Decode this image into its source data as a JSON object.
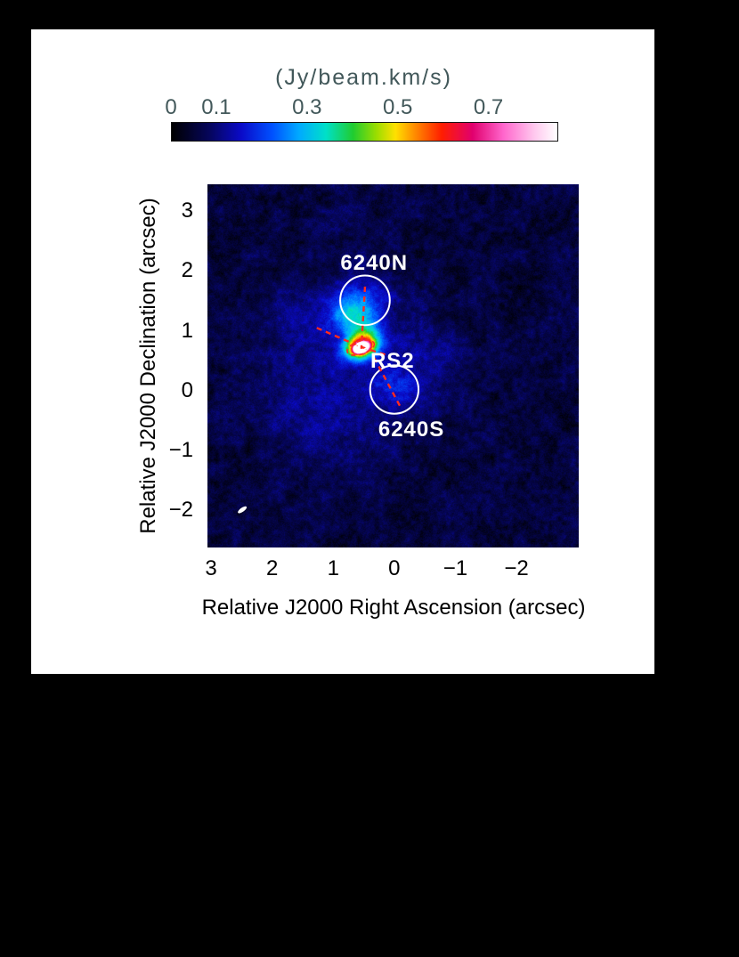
{
  "figure": {
    "background": "#000000",
    "panel_background": "#ffffff"
  },
  "colorbar": {
    "label": "(Jy/beam.km/s)",
    "text_color": "#42585a",
    "ticks": [
      {
        "value": 0,
        "label": "0"
      },
      {
        "value": 0.1,
        "label": "0.1"
      },
      {
        "value": 0.3,
        "label": "0.3"
      },
      {
        "value": 0.5,
        "label": "0.5"
      },
      {
        "value": 0.7,
        "label": "0.7"
      }
    ]
  },
  "axes": {
    "x_label": "Relative J2000 Right Ascension (arcsec)",
    "y_label": "Relative J2000 Declination (arcsec)",
    "x_ticks": [
      {
        "value": 3,
        "label": "3"
      },
      {
        "value": 2,
        "label": "2"
      },
      {
        "value": 1,
        "label": "1"
      },
      {
        "value": 0,
        "label": "0"
      },
      {
        "value": -1,
        "label": "−1"
      },
      {
        "value": -2,
        "label": "−2"
      }
    ],
    "y_ticks": [
      {
        "value": 3,
        "label": "3"
      },
      {
        "value": 2,
        "label": "2"
      },
      {
        "value": 1,
        "label": "1"
      },
      {
        "value": 0,
        "label": "0"
      },
      {
        "value": -1,
        "label": "−1"
      },
      {
        "value": -2,
        "label": "−2"
      }
    ]
  },
  "annotations": {
    "text_color": "#ffffff",
    "marker_color": "#ff2a1e",
    "labels": [
      {
        "text": "6240N",
        "ra": 0.33,
        "dec": 2.12
      },
      {
        "text": "RS2",
        "ra": 0.03,
        "dec": 0.49
      },
      {
        "text": "6240S",
        "ra": -0.28,
        "dec": -0.66
      }
    ],
    "apertures": [
      {
        "name": "6240N",
        "ra": 0.48,
        "dec": 1.51,
        "radius_arcsec": 0.41
      },
      {
        "name": "6240S",
        "ra": 0.0,
        "dec": 0.02,
        "radius_arcsec": 0.4
      }
    ],
    "slit_lines": [
      {
        "ra1": 0.48,
        "dec1": 1.74,
        "ra2": 0.54,
        "dec2": 0.7
      },
      {
        "ra1": 1.27,
        "dec1": 1.05,
        "ra2": 0.54,
        "dec2": 0.73
      },
      {
        "ra1": 0.54,
        "dec1": 0.73,
        "ra2": 0.14,
        "dec2": 0.6
      },
      {
        "ra1": 0.33,
        "dec1": 0.55,
        "ra2": -0.11,
        "dec2": -0.29
      }
    ],
    "peak_contours": [
      {
        "ra": 0.55,
        "dec": 0.72,
        "rx_arcsec": 0.23,
        "ry_arcsec": 0.11,
        "pa_deg": -18,
        "color": "#ff2a1e",
        "dashed": true
      },
      {
        "ra": 0.55,
        "dec": 0.73,
        "rx_arcsec": 0.12,
        "ry_arcsec": 0.06,
        "pa_deg": -18,
        "color": "#ffffff",
        "dashed": false
      }
    ],
    "beam": {
      "ra": 2.49,
      "dec": -1.99,
      "rx_arcsec": 0.085,
      "ry_arcsec": 0.034,
      "pa_deg": -35
    }
  },
  "chart_data": {
    "type": "heatmap",
    "title": "",
    "colorbar_label": "(Jy/beam.km/s)",
    "value_range": [
      0,
      0.85
    ],
    "x_range": [
      3.06,
      -3.02
    ],
    "y_range": [
      3.45,
      -2.62
    ],
    "xlabel": "Relative J2000 Right Ascension (arcsec)",
    "ylabel": "Relative J2000 Declination (arcsec)",
    "legend": "none",
    "grid": false,
    "colormap": [
      {
        "p": 0.0,
        "c": "#000000"
      },
      {
        "p": 0.1,
        "c": "#06065e"
      },
      {
        "p": 0.18,
        "c": "#0a0ac8"
      },
      {
        "p": 0.26,
        "c": "#0050ff"
      },
      {
        "p": 0.33,
        "c": "#00aaff"
      },
      {
        "p": 0.4,
        "c": "#00e0c8"
      },
      {
        "p": 0.47,
        "c": "#20cc30"
      },
      {
        "p": 0.53,
        "c": "#9add00"
      },
      {
        "p": 0.58,
        "c": "#ffe000"
      },
      {
        "p": 0.63,
        "c": "#ff8c00"
      },
      {
        "p": 0.7,
        "c": "#ff1e00"
      },
      {
        "p": 0.78,
        "c": "#e1006e"
      },
      {
        "p": 0.86,
        "c": "#ff66cc"
      },
      {
        "p": 0.94,
        "c": "#ffc8ee"
      },
      {
        "p": 1.0,
        "c": "#ffffff"
      }
    ],
    "sources": [
      {
        "name": "6240N",
        "ra": 0.48,
        "dec": 1.51
      },
      {
        "name": "6240S",
        "ra": 0.0,
        "dec": 0.02
      },
      {
        "name": "RS2",
        "ra": 0.1,
        "dec": 0.35
      },
      {
        "name": "emission_peak",
        "ra": 0.55,
        "dec": 0.72,
        "peak_jy_beam_kms": 0.85
      }
    ],
    "blobs": [
      {
        "ra": 0.55,
        "dec": 0.72,
        "amp": 1.35,
        "sra": 0.075,
        "sdec": 0.05,
        "pa": -20
      },
      {
        "ra": 0.55,
        "dec": 0.75,
        "amp": 0.45,
        "sra": 0.2,
        "sdec": 0.14,
        "pa": -20
      },
      {
        "ra": 0.52,
        "dec": 1.0,
        "amp": 0.17,
        "sra": 0.2,
        "sdec": 0.3,
        "pa": -10
      },
      {
        "ra": 0.84,
        "dec": 1.32,
        "amp": 0.13,
        "sra": 0.2,
        "sdec": 0.22,
        "pa": 0
      },
      {
        "ra": 0.48,
        "dec": 1.55,
        "amp": 0.1,
        "sra": 0.26,
        "sdec": 0.24,
        "pa": 0
      },
      {
        "ra": 0.6,
        "dec": 0.7,
        "amp": 0.05,
        "sra": 0.85,
        "sdec": 1.0,
        "pa": 0
      },
      {
        "ra": 1.3,
        "dec": -0.5,
        "amp": 0.042,
        "sra": 0.8,
        "sdec": 0.55,
        "pa": 20
      },
      {
        "ra": 0.0,
        "dec": 0.05,
        "amp": 0.065,
        "sra": 0.28,
        "sdec": 0.24,
        "pa": 0
      },
      {
        "ra": -0.6,
        "dec": 0.4,
        "amp": 0.035,
        "sra": 0.55,
        "sdec": 0.5,
        "pa": 0
      },
      {
        "ra": 1.7,
        "dec": 1.1,
        "amp": 0.035,
        "sra": 0.5,
        "sdec": 0.5,
        "pa": 0
      }
    ],
    "noise": {
      "floor": 0.012,
      "pixel": 0.02,
      "seed": 1234567,
      "octaves": [
        {
          "cell": 5,
          "amp": 0.048
        },
        {
          "cell": 16,
          "amp": 0.04
        }
      ]
    }
  }
}
